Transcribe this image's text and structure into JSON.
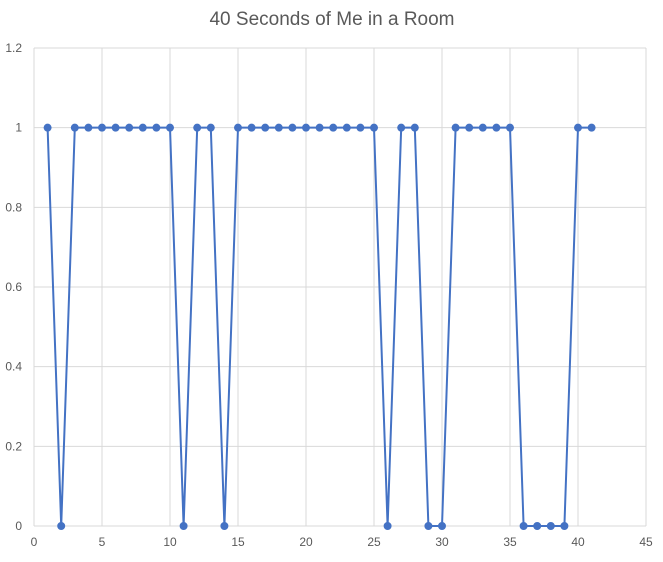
{
  "chart_data": {
    "type": "scatter",
    "title": "40 Seconds of Me in a Room",
    "xlabel": "",
    "ylabel": "",
    "xlim": [
      0,
      45
    ],
    "ylim": [
      0,
      1.2
    ],
    "xticks": [
      0,
      5,
      10,
      15,
      20,
      25,
      30,
      35,
      40,
      45
    ],
    "yticks": [
      0,
      0.2,
      0.4,
      0.6,
      0.8,
      1,
      1.2
    ],
    "xtick_labels": [
      "0",
      "5",
      "10",
      "15",
      "20",
      "25",
      "30",
      "35",
      "40",
      "45"
    ],
    "ytick_labels": [
      "0",
      "0.2",
      "0.4",
      "0.6",
      "0.8",
      "1",
      "1.2"
    ],
    "grid": true,
    "legend": "none",
    "series": [
      {
        "color": "#4472C4",
        "marker": "circle",
        "lines": true,
        "x": [
          1,
          2,
          3,
          4,
          5,
          6,
          7,
          8,
          9,
          10,
          11,
          12,
          13,
          14,
          15,
          16,
          17,
          18,
          19,
          20,
          21,
          22,
          23,
          24,
          25,
          26,
          27,
          28,
          29,
          30,
          31,
          32,
          33,
          34,
          35,
          36,
          37,
          38,
          39,
          40,
          41
        ],
        "y": [
          1,
          0,
          1,
          1,
          1,
          1,
          1,
          1,
          1,
          1,
          0,
          1,
          1,
          0,
          1,
          1,
          1,
          1,
          1,
          1,
          1,
          1,
          1,
          1,
          1,
          0,
          1,
          1,
          0,
          0,
          1,
          1,
          1,
          1,
          1,
          0,
          0,
          0,
          0,
          1,
          1
        ]
      }
    ],
    "colors": {
      "grid": "#d9d9d9",
      "axis_text": "#595959",
      "title": "#595959"
    }
  }
}
